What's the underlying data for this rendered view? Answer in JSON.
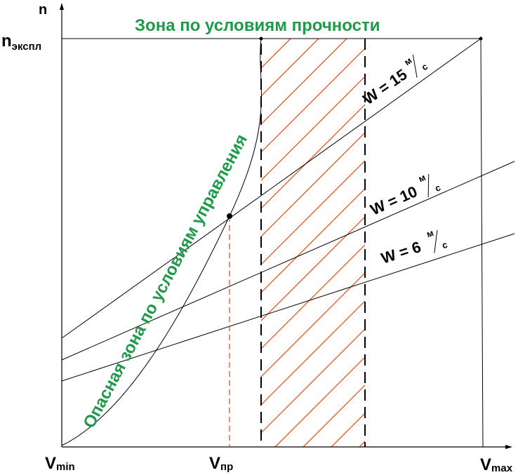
{
  "axes": {
    "y_label": "n",
    "y_tick_main": "n",
    "y_tick_sub": "экспл",
    "x_ticks": [
      {
        "main": "V",
        "sub": "min"
      },
      {
        "main": "V",
        "sub": "пр"
      },
      {
        "main": "V",
        "sub": "max"
      }
    ]
  },
  "zones": {
    "strength": "Зона по условиям прочности",
    "control": "Опасная зона по условиям управления"
  },
  "lines": [
    {
      "prefix": "W = 15",
      "unit_top": "м",
      "unit_bottom": "с"
    },
    {
      "prefix": "W = 10",
      "unit_top": "м",
      "unit_bottom": "с"
    },
    {
      "prefix": "W = 6",
      "unit_top": "м",
      "unit_bottom": "с"
    }
  ],
  "colors": {
    "axis": "#000000",
    "zone_text": "#1f9a4a",
    "hatch": "#e8501e"
  }
}
